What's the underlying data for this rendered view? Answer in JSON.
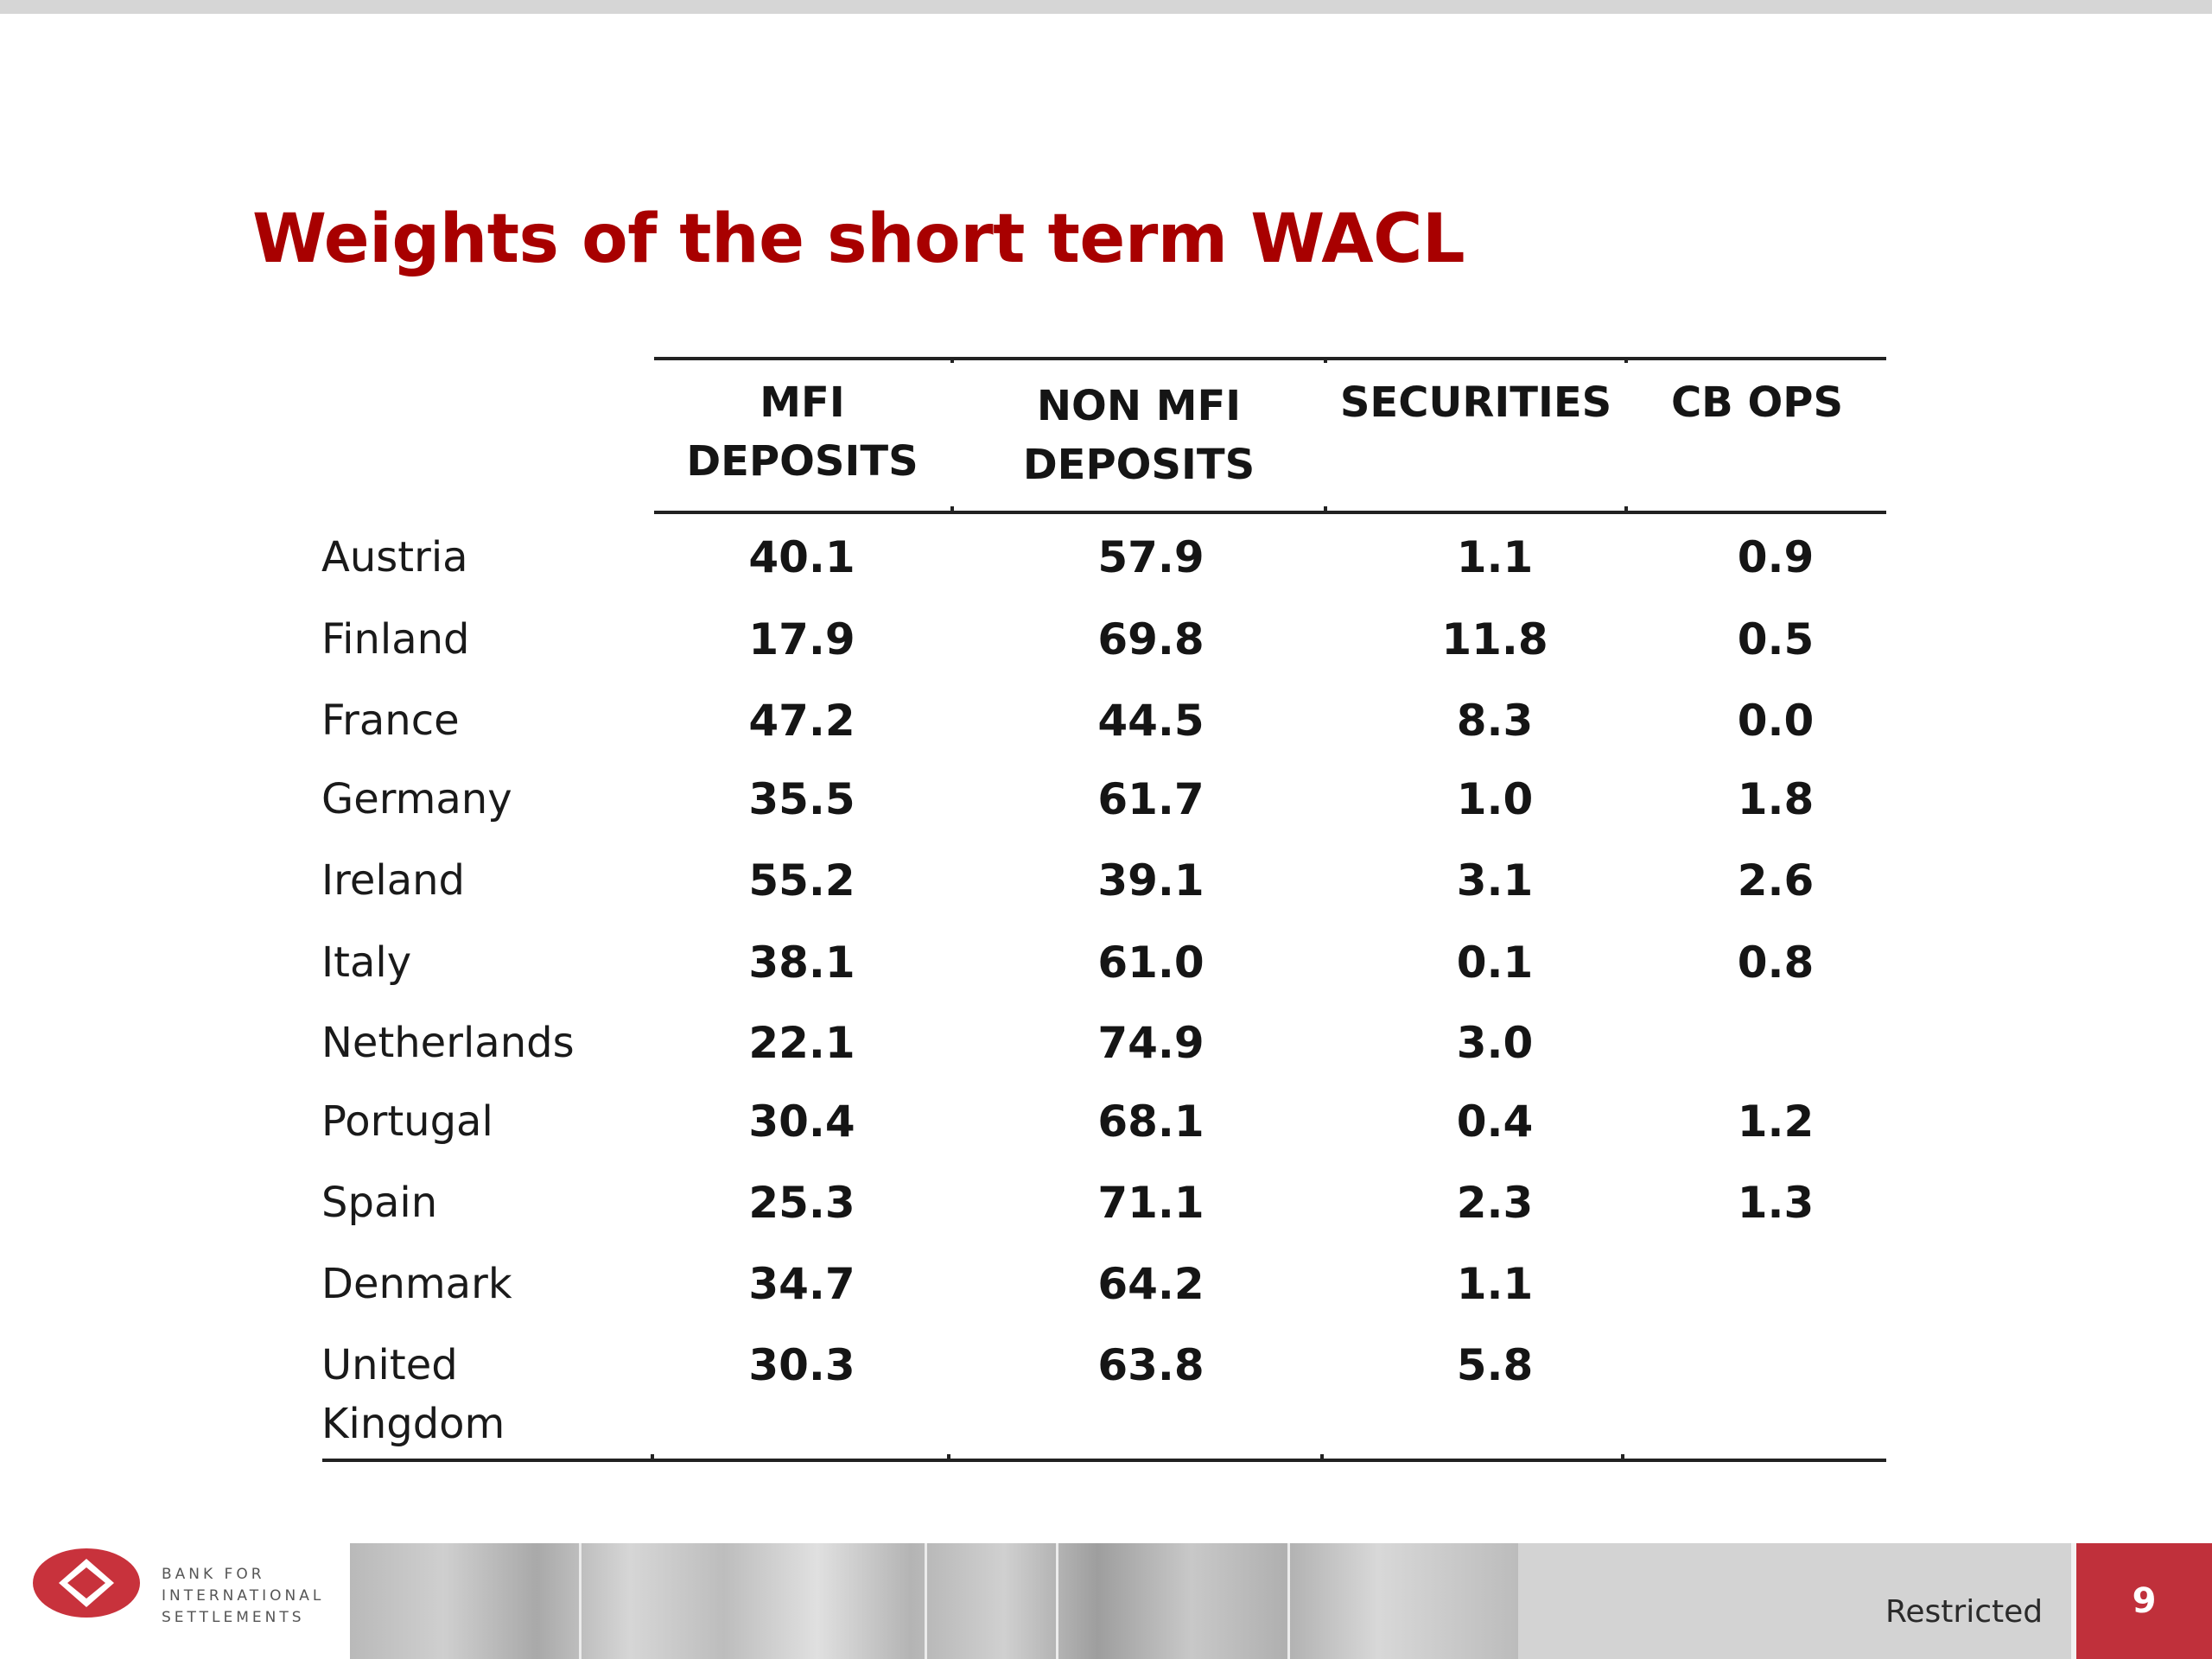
{
  "title": "Weights of the short term WACL",
  "table": {
    "columns": [
      "MFI\nDEPOSITS",
      "NON MFI\nDEPOSITS",
      "SECURITIES",
      "CB OPS"
    ],
    "rows": [
      {
        "label": "Austria",
        "values": [
          "40.1",
          "57.9",
          "1.1",
          "0.9"
        ]
      },
      {
        "label": "Finland",
        "values": [
          "17.9",
          "69.8",
          "11.8",
          "0.5"
        ]
      },
      {
        "label": "France",
        "values": [
          "47.2",
          "44.5",
          "8.3",
          "0.0"
        ]
      },
      {
        "label": "Germany",
        "values": [
          "35.5",
          "61.7",
          "1.0",
          "1.8"
        ]
      },
      {
        "label": "Ireland",
        "values": [
          "55.2",
          "39.1",
          "3.1",
          "2.6"
        ]
      },
      {
        "label": "Italy",
        "values": [
          "38.1",
          "61.0",
          "0.1",
          "0.8"
        ]
      },
      {
        "label": "Netherlands",
        "values": [
          "22.1",
          "74.9",
          "3.0",
          ""
        ]
      },
      {
        "label": "Portugal",
        "values": [
          "30.4",
          "68.1",
          "0.4",
          "1.2"
        ]
      },
      {
        "label": "Spain",
        "values": [
          "25.3",
          "71.1",
          "2.3",
          "1.3"
        ]
      },
      {
        "label": "Denmark",
        "values": [
          "34.7",
          "64.2",
          "1.1",
          ""
        ]
      },
      {
        "label": "United\nKingdom",
        "values": [
          "30.3",
          "63.8",
          "5.8",
          ""
        ]
      }
    ]
  },
  "footer": {
    "logo_text": "BANK FOR\nINTERNATIONAL\nSETTLEMENTS",
    "classification": "Restricted",
    "page_number": "9"
  },
  "colors": {
    "title": "#a80000",
    "page_box": "#c0303b",
    "logo": "#c8323c"
  }
}
